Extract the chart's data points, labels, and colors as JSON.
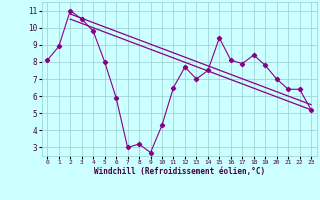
{
  "x": [
    0,
    1,
    2,
    3,
    4,
    5,
    6,
    7,
    8,
    9,
    10,
    11,
    12,
    13,
    14,
    15,
    16,
    17,
    18,
    19,
    20,
    21,
    22,
    23
  ],
  "y_scatter": [
    8.1,
    8.9,
    11.0,
    10.5,
    9.8,
    8.0,
    5.9,
    3.0,
    3.2,
    2.7,
    4.3,
    6.5,
    7.7,
    7.0,
    7.5,
    9.4,
    8.1,
    7.9,
    8.4,
    7.8,
    7.0,
    6.4,
    6.4,
    5.2
  ],
  "trend1_x": [
    2,
    23
  ],
  "trend1_y": [
    10.5,
    5.2
  ],
  "trend2_x": [
    2,
    23
  ],
  "trend2_y": [
    10.8,
    5.5
  ],
  "color": "#880088",
  "bg_color": "#ccffff",
  "grid_color": "#99cccc",
  "xlabel": "Windchill (Refroidissement éolien,°C)",
  "xlim": [
    -0.5,
    23.5
  ],
  "ylim": [
    2.5,
    11.5
  ],
  "yticks": [
    3,
    4,
    5,
    6,
    7,
    8,
    9,
    10,
    11
  ],
  "xticks": [
    0,
    1,
    2,
    3,
    4,
    5,
    6,
    7,
    8,
    9,
    10,
    11,
    12,
    13,
    14,
    15,
    16,
    17,
    18,
    19,
    20,
    21,
    22,
    23
  ],
  "figsize": [
    3.2,
    2.0
  ],
  "dpi": 100
}
